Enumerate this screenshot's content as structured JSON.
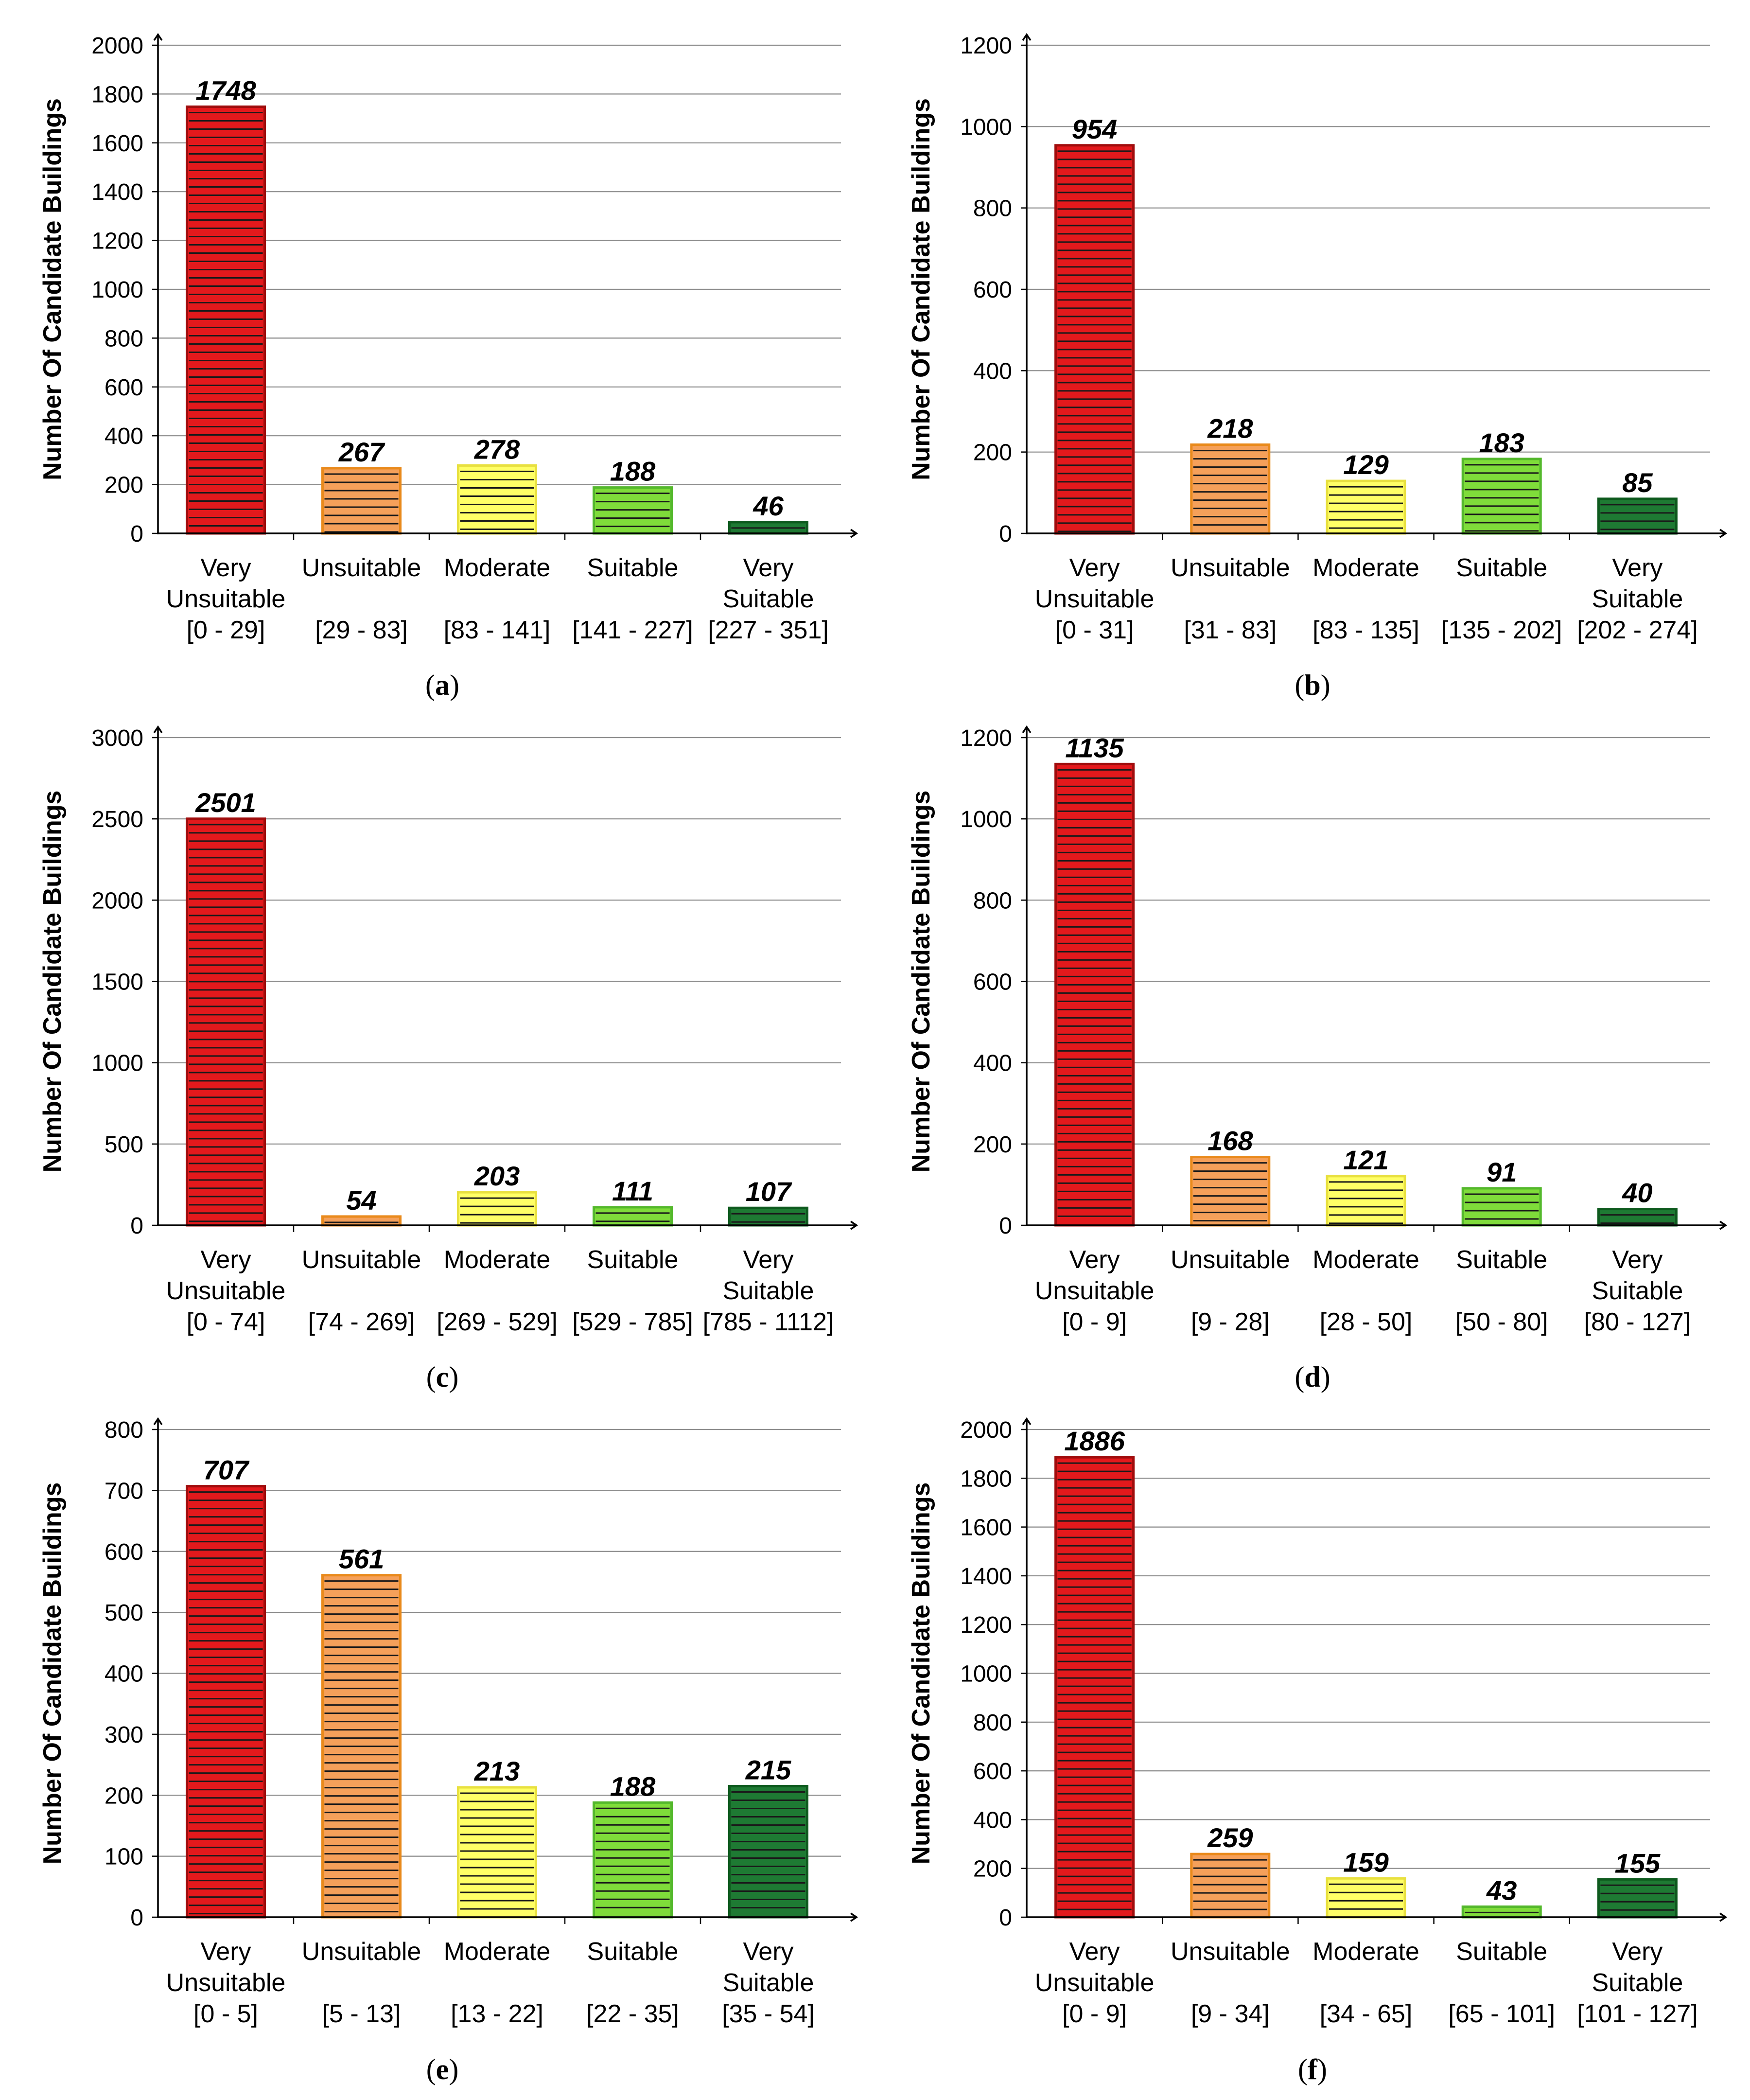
{
  "y_axis_title": "Number Of Candidate Buildings",
  "bar_colors": {
    "very_unsuitable": "#e3191c",
    "unsuitable": "#f5a05a",
    "moderate": "#ffff66",
    "suitable": "#7fdc3a",
    "very_suitable": "#1e7a33"
  },
  "bar_border_colors": {
    "very_unsuitable": "#a00d0d",
    "unsuitable": "#e98a1c",
    "moderate": "#e8e040",
    "suitable": "#54b82c",
    "very_suitable": "#0e5a1e"
  },
  "chart_data": [
    {
      "panel": "a",
      "type": "bar",
      "ylabel": "Number Of Candidate Buildings",
      "ylim": [
        0,
        2000
      ],
      "yticks": [
        0,
        200,
        400,
        600,
        800,
        1000,
        1200,
        1400,
        1600,
        1800,
        2000
      ],
      "categories": [
        {
          "name": [
            "Very",
            "Unsuitable"
          ],
          "range": "[0 - 29]"
        },
        {
          "name": [
            "Unsuitable"
          ],
          "range": "[29 - 83]"
        },
        {
          "name": [
            "Moderate"
          ],
          "range": "[83 - 141]"
        },
        {
          "name": [
            "Suitable"
          ],
          "range": "[141 - 227]"
        },
        {
          "name": [
            "Very",
            "Suitable"
          ],
          "range": "[227 - 351]"
        }
      ],
      "values": [
        1748,
        267,
        278,
        188,
        46
      ]
    },
    {
      "panel": "b",
      "type": "bar",
      "ylabel": "Number Of Candidate Buildings",
      "ylim": [
        0,
        1200
      ],
      "yticks": [
        0,
        200,
        400,
        600,
        800,
        1000,
        1200
      ],
      "categories": [
        {
          "name": [
            "Very",
            "Unsuitable"
          ],
          "range": "[0 - 31]"
        },
        {
          "name": [
            "Unsuitable"
          ],
          "range": "[31 - 83]"
        },
        {
          "name": [
            "Moderate"
          ],
          "range": "[83 - 135]"
        },
        {
          "name": [
            "Suitable"
          ],
          "range": "[135 - 202]"
        },
        {
          "name": [
            "Very",
            "Suitable"
          ],
          "range": "[202 - 274]"
        }
      ],
      "values": [
        954,
        218,
        129,
        183,
        85
      ]
    },
    {
      "panel": "c",
      "type": "bar",
      "ylabel": "Number Of Candidate Buildings",
      "ylim": [
        0,
        3000
      ],
      "yticks": [
        0,
        500,
        1000,
        1500,
        2000,
        2500,
        3000
      ],
      "categories": [
        {
          "name": [
            "Very",
            "Unsuitable"
          ],
          "range": "[0 - 74]"
        },
        {
          "name": [
            "Unsuitable"
          ],
          "range": "[74 - 269]"
        },
        {
          "name": [
            "Moderate"
          ],
          "range": "[269 - 529]"
        },
        {
          "name": [
            "Suitable"
          ],
          "range": "[529 - 785]"
        },
        {
          "name": [
            "Very",
            "Suitable"
          ],
          "range": "[785 - 1112]"
        }
      ],
      "values": [
        2501,
        54,
        203,
        111,
        107
      ]
    },
    {
      "panel": "d",
      "type": "bar",
      "ylabel": "Number Of Candidate Buildings",
      "ylim": [
        0,
        1200
      ],
      "yticks": [
        0,
        200,
        400,
        600,
        800,
        1000,
        1200
      ],
      "categories": [
        {
          "name": [
            "Very",
            "Unsuitable"
          ],
          "range": "[0 - 9]"
        },
        {
          "name": [
            "Unsuitable"
          ],
          "range": "[9 - 28]"
        },
        {
          "name": [
            "Moderate"
          ],
          "range": "[28 - 50]"
        },
        {
          "name": [
            "Suitable"
          ],
          "range": "[50 - 80]"
        },
        {
          "name": [
            "Very",
            "Suitable"
          ],
          "range": "[80 - 127]"
        }
      ],
      "values": [
        1135,
        168,
        121,
        91,
        40
      ]
    },
    {
      "panel": "e",
      "type": "bar",
      "ylabel": "Number Of Candidate Buildings",
      "ylim": [
        0,
        800
      ],
      "yticks": [
        0,
        100,
        200,
        300,
        400,
        500,
        600,
        700,
        800
      ],
      "categories": [
        {
          "name": [
            "Very",
            "Unsuitable"
          ],
          "range": "[0 - 5]"
        },
        {
          "name": [
            "Unsuitable"
          ],
          "range": "[5 - 13]"
        },
        {
          "name": [
            "Moderate"
          ],
          "range": "[13 - 22]"
        },
        {
          "name": [
            "Suitable"
          ],
          "range": "[22 - 35]"
        },
        {
          "name": [
            "Very",
            "Suitable"
          ],
          "range": "[35 - 54]"
        }
      ],
      "values": [
        707,
        561,
        213,
        188,
        215
      ]
    },
    {
      "panel": "f",
      "type": "bar",
      "ylabel": "Number Of Candidate Buildings",
      "ylim": [
        0,
        2000
      ],
      "yticks": [
        0,
        200,
        400,
        600,
        800,
        1000,
        1200,
        1400,
        1600,
        1800,
        2000
      ],
      "categories": [
        {
          "name": [
            "Very",
            "Unsuitable"
          ],
          "range": "[0 - 9]"
        },
        {
          "name": [
            "Unsuitable"
          ],
          "range": "[9 - 34]"
        },
        {
          "name": [
            "Moderate"
          ],
          "range": "[34 - 65]"
        },
        {
          "name": [
            "Suitable"
          ],
          "range": "[65 - 101]"
        },
        {
          "name": [
            "Very",
            "Suitable"
          ],
          "range": "[101 - 127]"
        }
      ],
      "values": [
        1886,
        259,
        159,
        43,
        155
      ]
    }
  ],
  "panel_labels": [
    {
      "open": "(",
      "letter": "a",
      "close": ")"
    },
    {
      "open": "(",
      "letter": "b",
      "close": ")"
    },
    {
      "open": "(",
      "letter": "c",
      "close": ")"
    },
    {
      "open": "(",
      "letter": "d",
      "close": ")"
    },
    {
      "open": "(",
      "letter": "e",
      "close": ")"
    },
    {
      "open": "(",
      "letter": "f",
      "close": ")"
    }
  ]
}
